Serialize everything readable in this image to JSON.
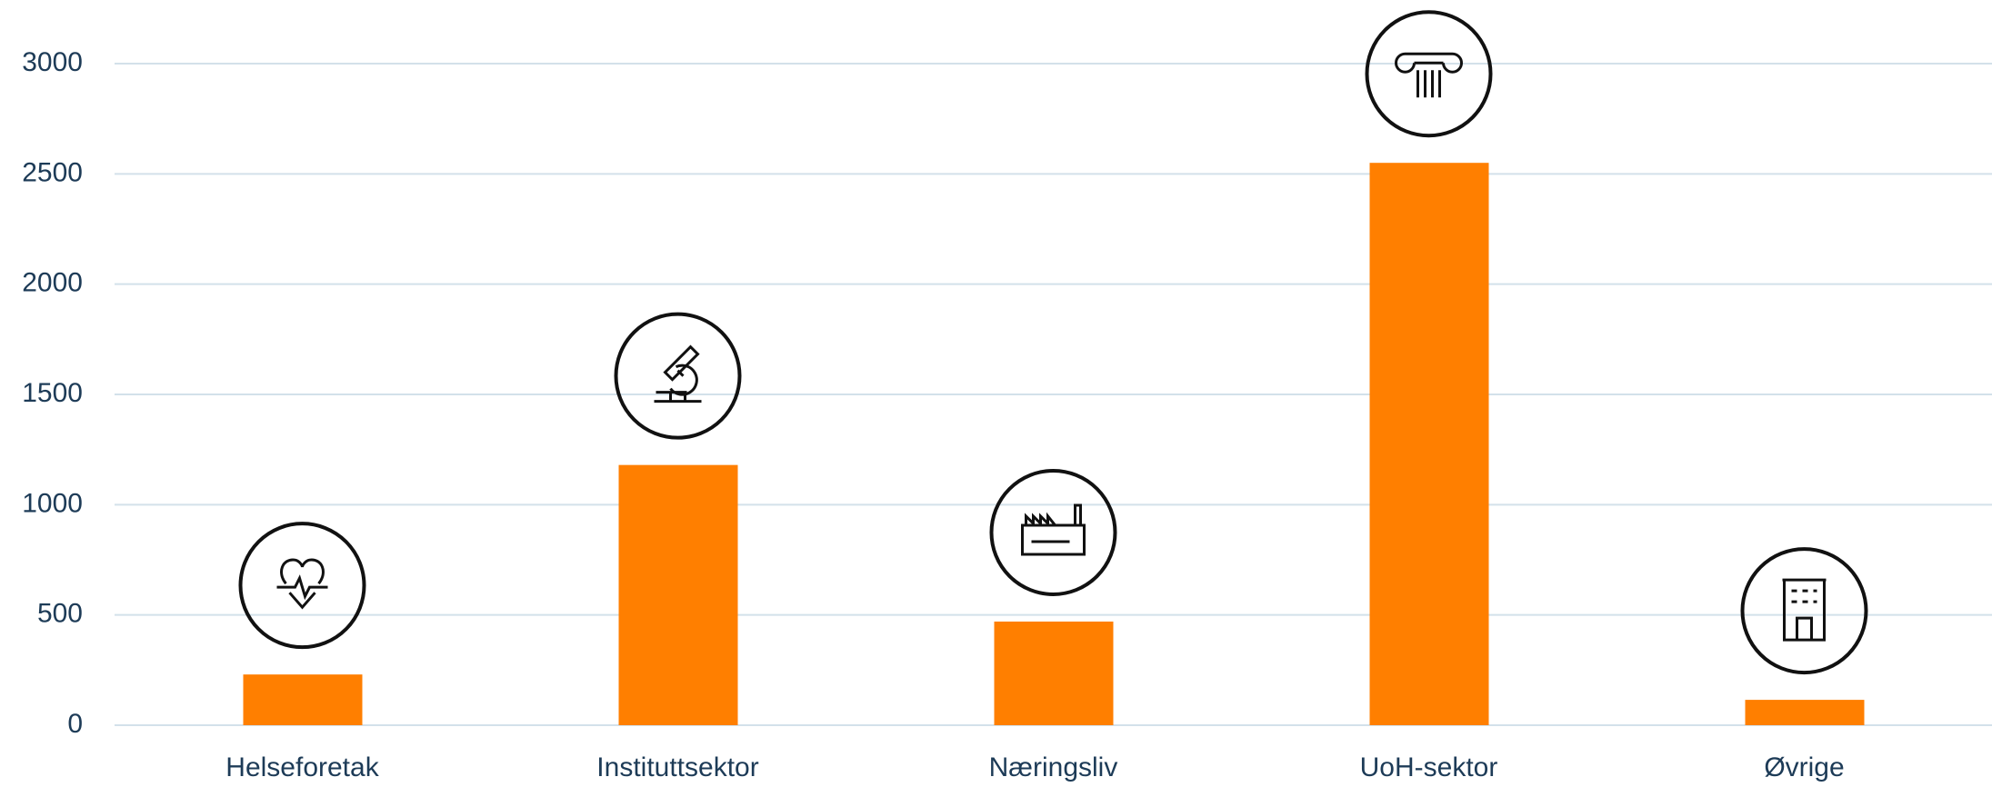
{
  "chart_data": {
    "type": "bar",
    "categories": [
      "Helseforetak",
      "Instituttsektor",
      "Næringsliv",
      "UoH-sektor",
      "Øvrige"
    ],
    "values": [
      230,
      1180,
      470,
      2550,
      115
    ],
    "color": "#ff7f00",
    "ylim": [
      0,
      3000
    ],
    "yticks": [
      0,
      500,
      1000,
      1500,
      2000,
      2500,
      3000
    ],
    "grid": true
  }
}
